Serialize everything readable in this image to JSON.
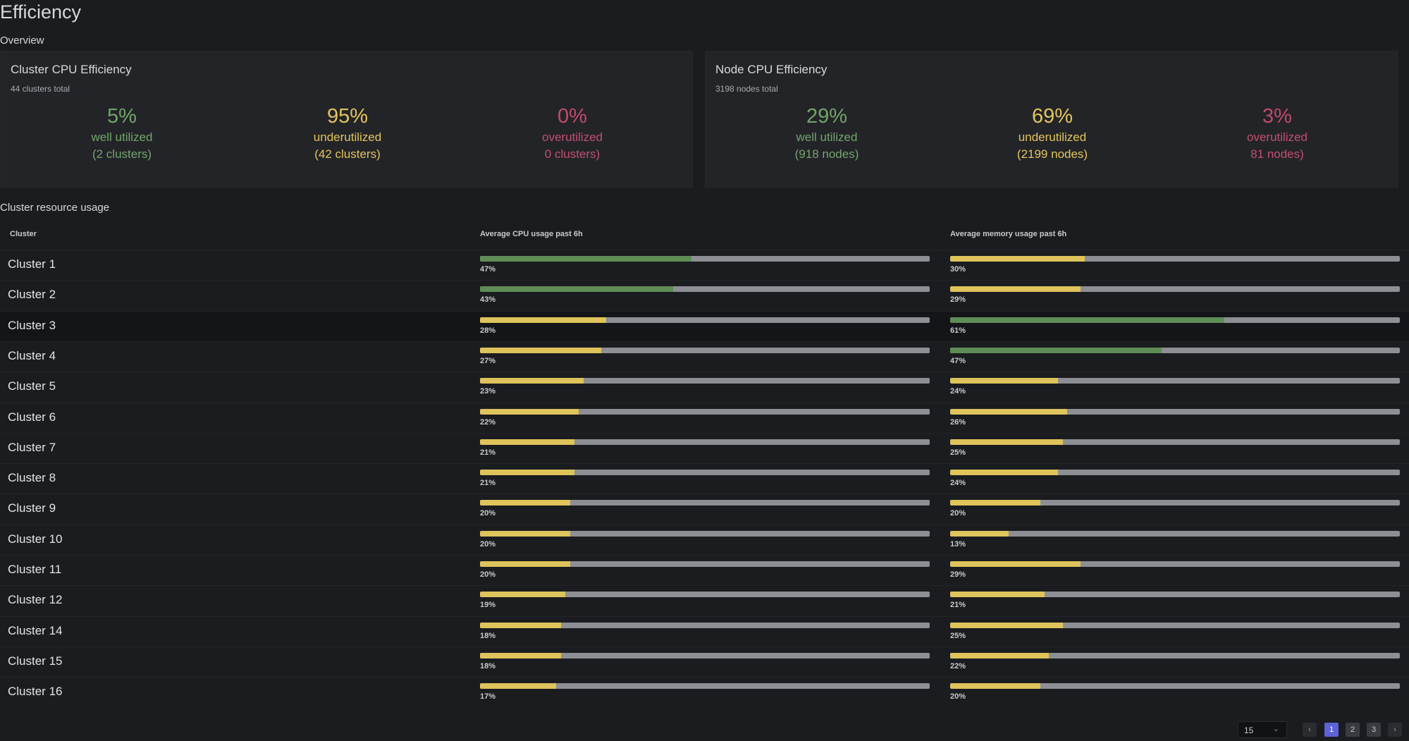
{
  "page": {
    "title": "Efficiency"
  },
  "overview": {
    "title": "Overview",
    "cluster_panel": {
      "title": "Cluster CPU Efficiency",
      "subtitle": "44 clusters total",
      "well": {
        "pct": "5%",
        "label": "well utilized",
        "count": "(2 clusters)"
      },
      "under": {
        "pct": "95%",
        "label": "underutilized",
        "count": "(42 clusters)"
      },
      "over": {
        "pct": "0%",
        "label": "overutilized",
        "count": "0 clusters)"
      }
    },
    "node_panel": {
      "title": "Node CPU Efficiency",
      "subtitle": "3198 nodes total",
      "well": {
        "pct": "29%",
        "label": "well utilized",
        "count": "(918 nodes)"
      },
      "under": {
        "pct": "69%",
        "label": "underutilized",
        "count": "(2199 nodes)"
      },
      "over": {
        "pct": "3%",
        "label": "overutilized",
        "count": "81 nodes)"
      }
    }
  },
  "usage": {
    "title": "Cluster resource usage",
    "headers": {
      "cluster": "Cluster",
      "cpu": "Average CPU usage past 6h",
      "mem": "Average memory usage past 6h"
    },
    "rows": [
      {
        "name": "Cluster 1",
        "cpu": 47,
        "cpu_label": "47%",
        "mem": 30,
        "mem_label": "30%"
      },
      {
        "name": "Cluster 2",
        "cpu": 43,
        "cpu_label": "43%",
        "mem": 29,
        "mem_label": "29%"
      },
      {
        "name": "Cluster 3",
        "cpu": 28,
        "cpu_label": "28%",
        "mem": 61,
        "mem_label": "61%"
      },
      {
        "name": "Cluster 4",
        "cpu": 27,
        "cpu_label": "27%",
        "mem": 47,
        "mem_label": "47%"
      },
      {
        "name": "Cluster 5",
        "cpu": 23,
        "cpu_label": "23%",
        "mem": 24,
        "mem_label": "24%"
      },
      {
        "name": "Cluster 6",
        "cpu": 22,
        "cpu_label": "22%",
        "mem": 26,
        "mem_label": "26%"
      },
      {
        "name": "Cluster 7",
        "cpu": 21,
        "cpu_label": "21%",
        "mem": 25,
        "mem_label": "25%"
      },
      {
        "name": "Cluster 8",
        "cpu": 21,
        "cpu_label": "21%",
        "mem": 24,
        "mem_label": "24%"
      },
      {
        "name": "Cluster 9",
        "cpu": 20,
        "cpu_label": "20%",
        "mem": 20,
        "mem_label": "20%"
      },
      {
        "name": "Cluster 10",
        "cpu": 20,
        "cpu_label": "20%",
        "mem": 13,
        "mem_label": "13%"
      },
      {
        "name": "Cluster 11",
        "cpu": 20,
        "cpu_label": "20%",
        "mem": 29,
        "mem_label": "29%"
      },
      {
        "name": "Cluster 12",
        "cpu": 19,
        "cpu_label": "19%",
        "mem": 21,
        "mem_label": "21%"
      },
      {
        "name": "Cluster 14",
        "cpu": 18,
        "cpu_label": "18%",
        "mem": 25,
        "mem_label": "25%"
      },
      {
        "name": "Cluster 15",
        "cpu": 18,
        "cpu_label": "18%",
        "mem": 22,
        "mem_label": "22%"
      },
      {
        "name": "Cluster 16",
        "cpu": 17,
        "cpu_label": "17%",
        "mem": 20,
        "mem_label": "20%"
      }
    ],
    "highlighted_row": "Cluster 3",
    "colors": {
      "good": "#5f8d56",
      "warn": "#dfc35b",
      "track": "#8d8f94"
    }
  },
  "pagination": {
    "page_size": "15",
    "pages": [
      "1",
      "2",
      "3"
    ],
    "current": "1",
    "prev_icon": "chevron-left-icon",
    "next_icon": "chevron-right-icon"
  }
}
